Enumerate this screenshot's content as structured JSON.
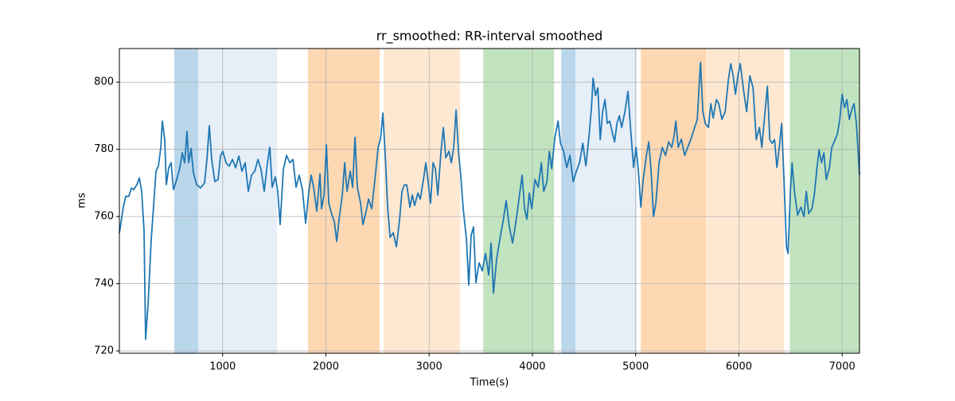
{
  "chart_data": {
    "type": "line",
    "title": "rr_smoothed: RR-interval smoothed",
    "xlabel": "Time(s)",
    "ylabel": "ms",
    "xlim": [
      0,
      7168
    ],
    "ylim": [
      719.3,
      810
    ],
    "xticks": [
      1000,
      2000,
      3000,
      4000,
      5000,
      6000,
      7000
    ],
    "yticks": [
      720,
      740,
      760,
      780,
      800
    ],
    "grid": true,
    "color": "#1f77b4",
    "spans": [
      {
        "start": 532,
        "end": 763,
        "color": "#bad6eb"
      },
      {
        "start": 763,
        "end": 1527,
        "color": "#e6eef8"
      },
      {
        "start": 1827,
        "end": 2521,
        "color": "#fed8b2"
      },
      {
        "start": 2560,
        "end": 3300,
        "color": "#fee8d2"
      },
      {
        "start": 3524,
        "end": 4210,
        "color": "#c1e3bf"
      },
      {
        "start": 4279,
        "end": 4418,
        "color": "#bad6eb"
      },
      {
        "start": 4418,
        "end": 5012,
        "color": "#e6eef8"
      },
      {
        "start": 5050,
        "end": 5682,
        "color": "#fed8b2"
      },
      {
        "start": 5682,
        "end": 6438,
        "color": "#fee8d2"
      },
      {
        "start": 6492,
        "end": 7168,
        "color": "#c1e3bf"
      }
    ],
    "x": [
      0,
      39,
      62,
      92,
      116,
      139,
      170,
      193,
      216,
      239,
      254,
      278,
      308,
      331,
      355,
      378,
      401,
      416,
      439,
      455,
      478,
      501,
      524,
      555,
      586,
      609,
      632,
      655,
      671,
      694,
      717,
      748,
      786,
      825,
      848,
      871,
      894,
      925,
      956,
      979,
      1002,
      1033,
      1064,
      1095,
      1126,
      1157,
      1187,
      1218,
      1249,
      1280,
      1311,
      1342,
      1372,
      1403,
      1434,
      1457,
      1480,
      1511,
      1534,
      1557,
      1588,
      1619,
      1650,
      1681,
      1711,
      1742,
      1773,
      1804,
      1835,
      1858,
      1881,
      1912,
      1943,
      1958,
      1982,
      2005,
      2028,
      2059,
      2082,
      2105,
      2128,
      2159,
      2182,
      2205,
      2236,
      2259,
      2282,
      2305,
      2336,
      2359,
      2390,
      2413,
      2444,
      2475,
      2506,
      2529,
      2552,
      2575,
      2598,
      2622,
      2652,
      2683,
      2714,
      2737,
      2760,
      2783,
      2814,
      2837,
      2860,
      2891,
      2914,
      2945,
      2968,
      2991,
      3014,
      3038,
      3061,
      3084,
      3115,
      3138,
      3161,
      3192,
      3215,
      3238,
      3261,
      3284,
      3307,
      3330,
      3361,
      3384,
      3407,
      3430,
      3453,
      3484,
      3515,
      3546,
      3577,
      3600,
      3623,
      3654,
      3685,
      3716,
      3746,
      3777,
      3808,
      3839,
      3870,
      3901,
      3924,
      3947,
      3970,
      3994,
      4025,
      4056,
      4087,
      4110,
      4141,
      4164,
      4187,
      4218,
      4249,
      4272,
      4302,
      4333,
      4364,
      4395,
      4426,
      4457,
      4488,
      4518,
      4549,
      4572,
      4588,
      4611,
      4634,
      4657,
      4680,
      4703,
      4726,
      4749,
      4772,
      4796,
      4819,
      4842,
      4865,
      4896,
      4926,
      4950,
      4980,
      5004,
      5027,
      5050,
      5073,
      5104,
      5127,
      5150,
      5173,
      5196,
      5227,
      5258,
      5289,
      5320,
      5350,
      5373,
      5389,
      5412,
      5443,
      5474,
      5504,
      5535,
      5566,
      5597,
      5628,
      5651,
      5674,
      5705,
      5728,
      5751,
      5782,
      5805,
      5836,
      5867,
      5898,
      5921,
      5944,
      5967,
      5990,
      6013,
      6044,
      6075,
      6106,
      6137,
      6168,
      6199,
      6222,
      6253,
      6276,
      6299,
      6322,
      6345,
      6368,
      6391,
      6414,
      6438,
      6461,
      6476,
      6499,
      6515,
      6538,
      6569,
      6600,
      6630,
      6653,
      6676,
      6707,
      6730,
      6753,
      6776,
      6800,
      6823,
      6846,
      6877,
      6900,
      6923,
      6954,
      6977,
      7000,
      7023,
      7046,
      7069,
      7092,
      7115,
      7138,
      7168
    ],
    "values": [
      755,
      763,
      766,
      766,
      768.5,
      768,
      769.5,
      771.5,
      767.5,
      755.7,
      723.5,
      734,
      753,
      763,
      773.5,
      775,
      780.5,
      788.4,
      783,
      769.5,
      774.5,
      776,
      768,
      771,
      774.5,
      779,
      776,
      785.3,
      776,
      780.3,
      773,
      769.5,
      768.5,
      770,
      777,
      787,
      777,
      770.4,
      771,
      778,
      779.4,
      776,
      775,
      777,
      774.5,
      778,
      773.5,
      776,
      767.5,
      772.3,
      773.5,
      777,
      774,
      767.5,
      776,
      780.6,
      768.7,
      771.8,
      767.5,
      757.6,
      774,
      778.2,
      776,
      777,
      768.7,
      772.3,
      768,
      758,
      767.5,
      772.3,
      768.7,
      761.6,
      772.7,
      762.3,
      766.4,
      781.3,
      764,
      760.4,
      758.5,
      752.6,
      759.2,
      766.4,
      776,
      767.5,
      773.5,
      768.7,
      783.6,
      768.7,
      764,
      757.6,
      761.6,
      765.2,
      762.3,
      771,
      780.6,
      783,
      790.8,
      778.2,
      762.8,
      753.8,
      755.2,
      751,
      759.2,
      767.5,
      769.4,
      769.4,
      762.8,
      766.4,
      763.3,
      767,
      765.2,
      771,
      776,
      770,
      764,
      776,
      774.2,
      766.4,
      779.4,
      786.5,
      777.5,
      779.4,
      776,
      780.6,
      791.7,
      779.4,
      771.8,
      762.3,
      753.3,
      739.6,
      754.5,
      756.9,
      740.3,
      746.2,
      743.8,
      749,
      742.6,
      752.1,
      737.2,
      747.4,
      753.3,
      758.5,
      764.7,
      756.9,
      752.1,
      758.1,
      765.2,
      772.3,
      762.3,
      759.2,
      767,
      762.3,
      771,
      768.7,
      776,
      767.5,
      770.4,
      779.4,
      774.2,
      783.6,
      788.4,
      781.8,
      779.4,
      774.6,
      778.2,
      770.4,
      773.5,
      776,
      781.8,
      775.1,
      784.1,
      792.4,
      801.2,
      796,
      798.3,
      782.9,
      791.2,
      794.8,
      787.7,
      788.4,
      785.3,
      782.2,
      787.7,
      790,
      786.5,
      791.2,
      797.2,
      786.5,
      774.6,
      780.6,
      773.5,
      762.8,
      771,
      778.2,
      782.2,
      773.5,
      760,
      764,
      776,
      780.6,
      778.2,
      782.2,
      780.6,
      784.1,
      788.4,
      780.6,
      783,
      778.2,
      780.6,
      783,
      786,
      788.9,
      805.9,
      791.2,
      787.7,
      786.5,
      793.6,
      789.3,
      794.8,
      793.6,
      788.9,
      791.2,
      800.7,
      805.5,
      801.9,
      796.4,
      801.9,
      805.5,
      797.9,
      791.2,
      801.9,
      798.3,
      782.9,
      786.5,
      780.6,
      791.2,
      798.8,
      782.9,
      781.8,
      782.9,
      774.6,
      780.6,
      787.7,
      769.9,
      751,
      749,
      767.5,
      776,
      767.5,
      760.4,
      762.8,
      760,
      767.5,
      760.9,
      762.3,
      766.4,
      773.5,
      779.9,
      776,
      779,
      771,
      774.6,
      780.6,
      782.2,
      784.6,
      788.9,
      796.4,
      792.4,
      794.8,
      788.9,
      791.7,
      793.6,
      787.7,
      772.3
    ]
  }
}
